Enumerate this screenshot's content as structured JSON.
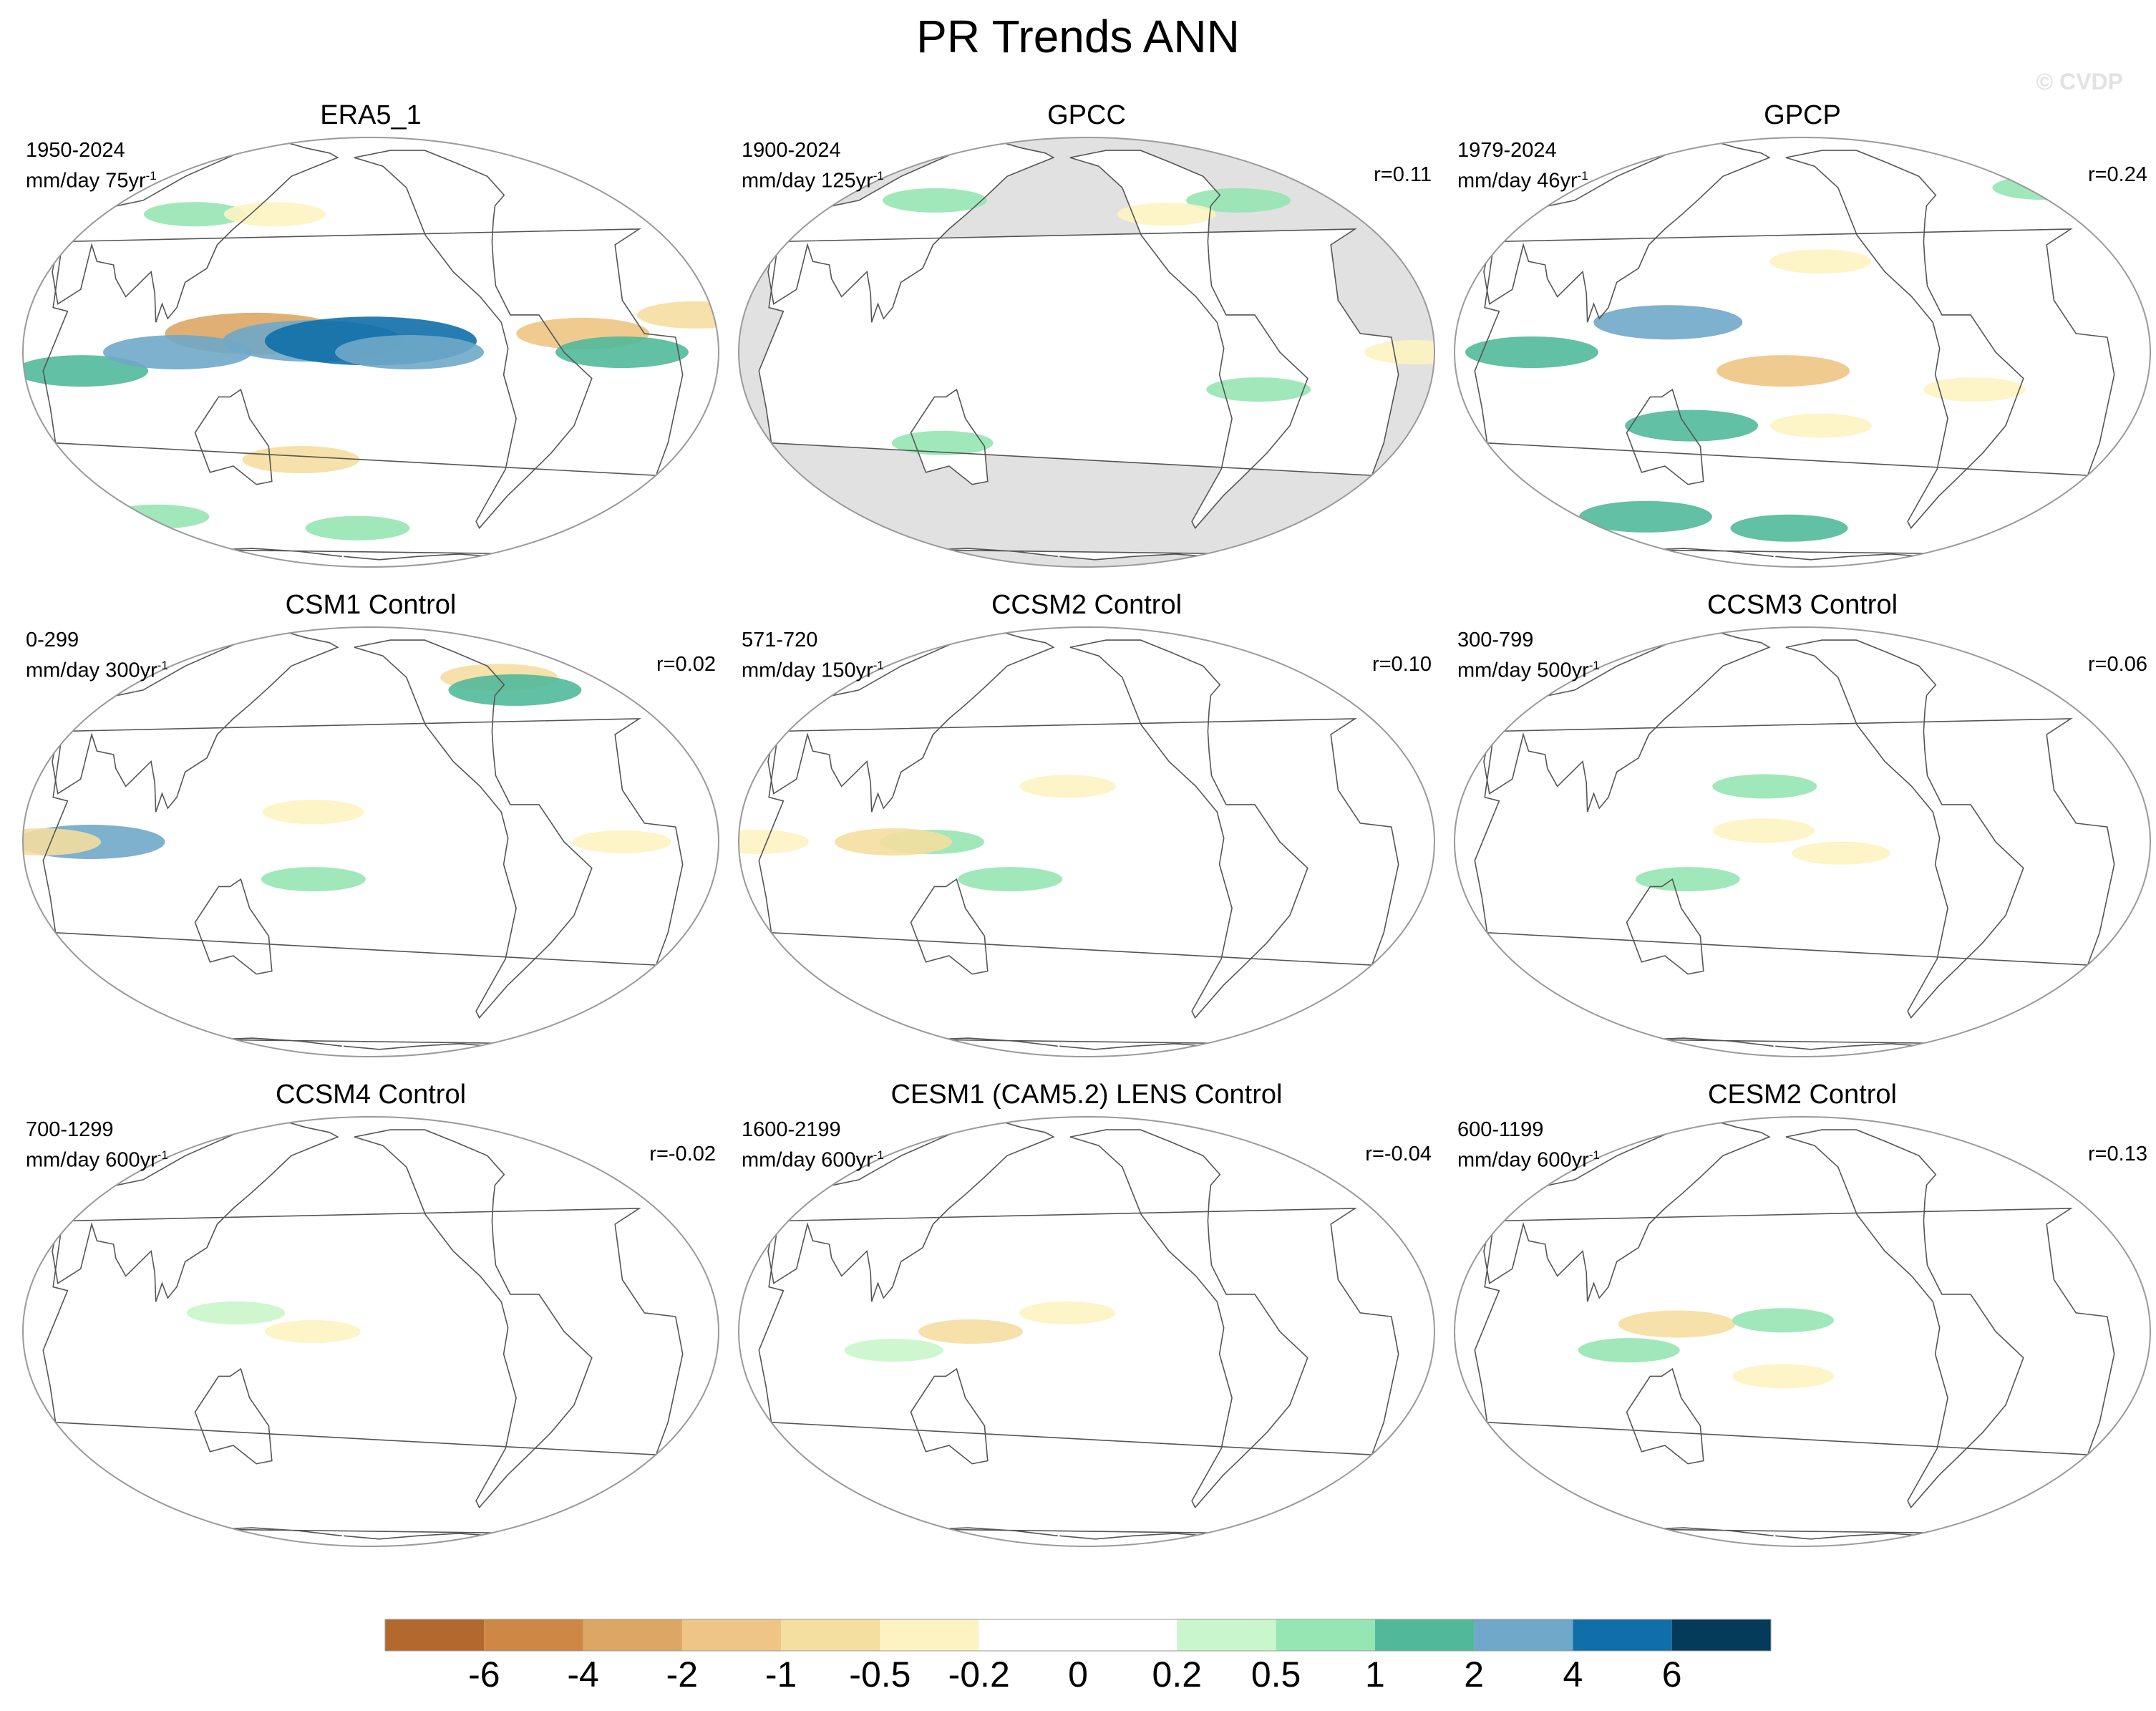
{
  "title": "PR Trends ANN",
  "watermark": "© CVDP",
  "chart_data": [
    {
      "type": "heatmap",
      "title": "ERA5_1",
      "period": "1950-2024",
      "units": "mm/day 75yr",
      "units_exp": "-1",
      "r": "",
      "land_masked": false,
      "features": [
        {
          "lon": 150,
          "lat": 5,
          "val": -3
        },
        {
          "lon": 180,
          "lat": 3,
          "val": 3
        },
        {
          "lon": 210,
          "lat": 3,
          "val": 4
        },
        {
          "lon": 230,
          "lat": 0,
          "val": 2
        },
        {
          "lon": 60,
          "lat": -5,
          "val": 1.5
        },
        {
          "lon": 110,
          "lat": 0,
          "val": 2
        },
        {
          "lon": 170,
          "lat": -30,
          "val": -1
        },
        {
          "lon": 60,
          "lat": -50,
          "val": 0.6
        },
        {
          "lon": 200,
          "lat": -55,
          "val": 0.6
        },
        {
          "lon": 320,
          "lat": 5,
          "val": -1.5
        },
        {
          "lon": 20,
          "lat": 10,
          "val": -1
        },
        {
          "lon": 100,
          "lat": 40,
          "val": 0.5
        },
        {
          "lon": 150,
          "lat": 40,
          "val": -0.5
        },
        {
          "lon": 340,
          "lat": 0,
          "val": 1.5
        }
      ]
    },
    {
      "type": "heatmap",
      "title": "GPCC",
      "period": "1900-2024",
      "units": "mm/day 125yr",
      "units_exp": "-1",
      "r": "r=0.11",
      "land_masked": true,
      "features": [
        {
          "lon": 110,
          "lat": 45,
          "val": 0.6
        },
        {
          "lon": 20,
          "lat": 0,
          "val": -0.5
        },
        {
          "lon": 300,
          "lat": -10,
          "val": 0.6
        },
        {
          "lon": 310,
          "lat": 45,
          "val": 0.6
        },
        {
          "lon": 130,
          "lat": -25,
          "val": 0.5
        },
        {
          "lon": 260,
          "lat": 40,
          "val": -0.4
        }
      ]
    },
    {
      "type": "heatmap",
      "title": "GPCP",
      "period": "1979-2024",
      "units": "mm/day 46yr",
      "units_exp": "-1",
      "r": "r=0.24",
      "land_masked": false,
      "features": [
        {
          "lon": 140,
          "lat": 8,
          "val": 2
        },
        {
          "lon": 200,
          "lat": -5,
          "val": -1.5
        },
        {
          "lon": 70,
          "lat": 0,
          "val": 1.5
        },
        {
          "lon": 150,
          "lat": -20,
          "val": 1.5
        },
        {
          "lon": 100,
          "lat": -50,
          "val": 1.5
        },
        {
          "lon": 220,
          "lat": 25,
          "val": -0.5
        },
        {
          "lon": 220,
          "lat": -20,
          "val": -0.5
        },
        {
          "lon": 300,
          "lat": -10,
          "val": -0.5
        },
        {
          "lon": 200,
          "lat": -55,
          "val": 1
        },
        {
          "lon": 20,
          "lat": 50,
          "val": 0.6
        }
      ]
    },
    {
      "type": "heatmap",
      "title": "CSM1 Control",
      "period": "0-299",
      "units": "mm/day 300yr",
      "units_exp": "-1",
      "r": "r=0.02",
      "land_masked": false,
      "features": [
        {
          "lon": 65,
          "lat": 0,
          "val": 2
        },
        {
          "lon": 40,
          "lat": 0,
          "val": -1
        },
        {
          "lon": 180,
          "lat": 8,
          "val": -0.5
        },
        {
          "lon": 180,
          "lat": -10,
          "val": 0.6
        },
        {
          "lon": 300,
          "lat": 50,
          "val": -1
        },
        {
          "lon": 305,
          "lat": 45,
          "val": 1.5
        },
        {
          "lon": 340,
          "lat": 0,
          "val": -0.4
        }
      ]
    },
    {
      "type": "heatmap",
      "title": "CCSM2 Control",
      "period": "571-720",
      "units": "mm/day 150yr",
      "units_exp": "-1",
      "r": "r=0.10",
      "land_masked": false,
      "features": [
        {
          "lon": 130,
          "lat": 0,
          "val": 0.6
        },
        {
          "lon": 110,
          "lat": 0,
          "val": -1
        },
        {
          "lon": 170,
          "lat": -10,
          "val": 0.6
        },
        {
          "lon": 40,
          "lat": 0,
          "val": -0.5
        },
        {
          "lon": 200,
          "lat": 15,
          "val": -0.3
        }
      ]
    },
    {
      "type": "heatmap",
      "title": "CCSM3 Control",
      "period": "300-799",
      "units": "mm/day 500yr",
      "units_exp": "-1",
      "r": "r=0.06",
      "land_masked": false,
      "features": [
        {
          "lon": 190,
          "lat": 3,
          "val": -0.5
        },
        {
          "lon": 190,
          "lat": 15,
          "val": 0.6
        },
        {
          "lon": 230,
          "lat": -3,
          "val": -0.4
        },
        {
          "lon": 150,
          "lat": -10,
          "val": 0.6
        }
      ]
    },
    {
      "type": "heatmap",
      "title": "CCSM4 Control",
      "period": "700-1299",
      "units": "mm/day 600yr",
      "units_exp": "-1",
      "r": "r=-0.02",
      "land_masked": false,
      "features": [
        {
          "lon": 180,
          "lat": 0,
          "val": -0.3
        },
        {
          "lon": 140,
          "lat": 5,
          "val": 0.4
        }
      ]
    },
    {
      "type": "heatmap",
      "title": "CESM1 (CAM5.2) LENS Control",
      "period": "1600-2199",
      "units": "mm/day 600yr",
      "units_exp": "-1",
      "r": "r=-0.04",
      "land_masked": false,
      "features": [
        {
          "lon": 150,
          "lat": 0,
          "val": -0.6
        },
        {
          "lon": 200,
          "lat": 5,
          "val": -0.3
        },
        {
          "lon": 110,
          "lat": -5,
          "val": 0.4
        }
      ]
    },
    {
      "type": "heatmap",
      "title": "CESM2 Control",
      "period": "600-1199",
      "units": "mm/day 600yr",
      "units_exp": "-1",
      "r": "r=0.13",
      "land_masked": false,
      "features": [
        {
          "lon": 145,
          "lat": 2,
          "val": -1
        },
        {
          "lon": 200,
          "lat": 3,
          "val": 0.5
        },
        {
          "lon": 200,
          "lat": -12,
          "val": -0.5
        },
        {
          "lon": 120,
          "lat": -5,
          "val": 0.5
        }
      ]
    }
  ],
  "colorbar": {
    "levels": [
      "-6",
      "-4",
      "-2",
      "-1",
      "-0.5",
      "-0.2",
      "0",
      "0.2",
      "0.5",
      "1",
      "2",
      "4",
      "6"
    ],
    "colors": [
      "#b2692e",
      "#cc8844",
      "#dca664",
      "#eec584",
      "#f4dea0",
      "#fdf3c2",
      "#ffffff",
      "#ffffff",
      "#c9f6cb",
      "#96e6b3",
      "#51b99a",
      "#6fa8c8",
      "#106fa8",
      "#043b5a"
    ]
  }
}
